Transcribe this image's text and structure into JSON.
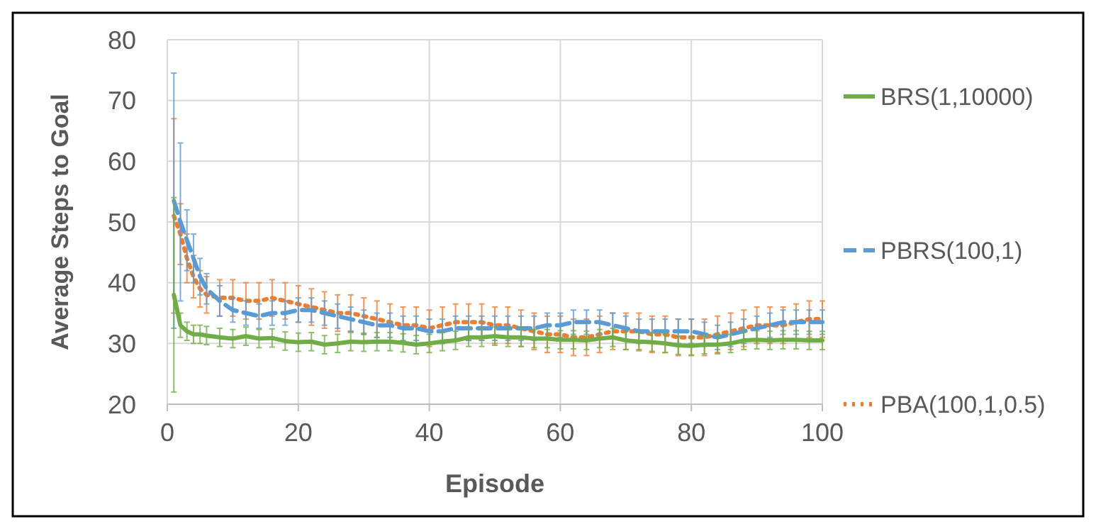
{
  "chart_data": {
    "type": "line",
    "xlabel": "Episode",
    "ylabel": "Average Steps to Goal",
    "x": [
      1,
      2,
      3,
      4,
      5,
      6,
      8,
      10,
      12,
      14,
      16,
      18,
      20,
      22,
      24,
      26,
      28,
      30,
      32,
      34,
      36,
      38,
      40,
      42,
      44,
      46,
      48,
      50,
      52,
      54,
      56,
      58,
      60,
      62,
      64,
      66,
      68,
      70,
      72,
      74,
      76,
      78,
      80,
      82,
      84,
      86,
      88,
      90,
      92,
      94,
      96,
      98,
      100
    ],
    "xlim": [
      0,
      100
    ],
    "xticks": [
      0,
      20,
      40,
      60,
      80,
      100
    ],
    "ylim": [
      20,
      80
    ],
    "yticks": [
      20,
      30,
      40,
      50,
      60,
      70,
      80
    ],
    "grid": true,
    "legend": "right",
    "marker": "none",
    "series": [
      {
        "name": "BRS(1,10000)",
        "color": "#70ad47",
        "line_style": "solid",
        "values": [
          38,
          33,
          32,
          31.5,
          31.5,
          31.3,
          31,
          30.8,
          31.2,
          30.8,
          30.9,
          30.4,
          30.2,
          30.3,
          29.8,
          30,
          30.3,
          30.2,
          30.3,
          30.3,
          30.1,
          29.8,
          30,
          30.3,
          30.5,
          31,
          31,
          31.2,
          31,
          31,
          30.8,
          30.8,
          30.6,
          30.6,
          30.5,
          30.8,
          31,
          30.5,
          30.3,
          30.2,
          30,
          29.7,
          29.6,
          29.8,
          29.8,
          30,
          30.5,
          30.6,
          30.5,
          30.6,
          30.6,
          30.5,
          30.5
        ],
        "errors": [
          16,
          2,
          1.5,
          1.5,
          1.5,
          1.5,
          1.5,
          1.5,
          1.5,
          1.5,
          1.5,
          1.5,
          1.5,
          1.5,
          1.5,
          1.5,
          1.5,
          1.5,
          1.5,
          1.5,
          1.5,
          1.5,
          1.5,
          1.5,
          1.5,
          1.5,
          1.5,
          1.5,
          1.5,
          1.5,
          1.5,
          1.5,
          1.5,
          1.5,
          1.5,
          1.5,
          1.5,
          1.5,
          1.5,
          1.5,
          1.5,
          1.5,
          1.5,
          1.5,
          1.5,
          1.5,
          1.5,
          1.5,
          1.5,
          1.5,
          1.5,
          1.5,
          1.5
        ]
      },
      {
        "name": "PBRS(100,1)",
        "color": "#5b9bd5",
        "line_style": "dashed",
        "values": [
          53.5,
          50,
          47,
          44,
          41,
          39,
          37,
          35.5,
          35,
          34.5,
          35,
          35,
          35.5,
          35.5,
          35,
          34.5,
          34,
          33.5,
          33,
          33,
          32.5,
          32.5,
          32,
          32,
          32.5,
          32.5,
          32.5,
          32.5,
          32.5,
          32.5,
          32.5,
          33,
          33,
          33.5,
          33.5,
          33.5,
          33,
          32.5,
          32,
          32,
          32,
          32,
          32,
          31.5,
          31,
          31.5,
          32,
          32.5,
          33,
          33.5,
          33.5,
          33.5,
          33.5
        ],
        "errors": [
          21,
          13,
          5,
          4,
          3,
          2.5,
          2.5,
          2,
          2,
          2,
          2,
          2,
          2,
          2,
          2,
          2,
          2,
          2,
          2,
          2,
          2,
          2,
          2,
          2,
          2,
          2,
          2,
          2,
          2,
          2,
          2,
          2,
          2,
          2,
          2,
          2,
          2,
          2,
          2,
          2,
          2,
          2,
          2,
          2,
          2,
          2,
          2,
          2,
          2,
          2,
          2,
          2,
          2
        ]
      },
      {
        "name": "PBA(100,1,0.5)",
        "color": "#ed7d31",
        "line_style": "dotted",
        "values": [
          51,
          48,
          44,
          41,
          39,
          38,
          37.5,
          37.5,
          37,
          37,
          37.5,
          37,
          36.5,
          36,
          35.5,
          35,
          35,
          34.5,
          34,
          33.5,
          33,
          33,
          32.5,
          33,
          33.5,
          33.5,
          33.5,
          33,
          33,
          32.5,
          32,
          31.5,
          31.5,
          31,
          31,
          31.5,
          32,
          32,
          32,
          31.5,
          31.5,
          31,
          31,
          31,
          31.5,
          32,
          32.5,
          33,
          33,
          33,
          33.5,
          34,
          34
        ],
        "errors": [
          16,
          5,
          4,
          3.5,
          3,
          3,
          3,
          3,
          3,
          3,
          3,
          3,
          3,
          3,
          3,
          3,
          3,
          3,
          3,
          3,
          3,
          3,
          3,
          3,
          3,
          3,
          3,
          3,
          3,
          3,
          3,
          3,
          3,
          3,
          3,
          3,
          3,
          3,
          3,
          3,
          3,
          3,
          3,
          3,
          3,
          3,
          3,
          3,
          3,
          3,
          3,
          3,
          3
        ]
      }
    ]
  }
}
